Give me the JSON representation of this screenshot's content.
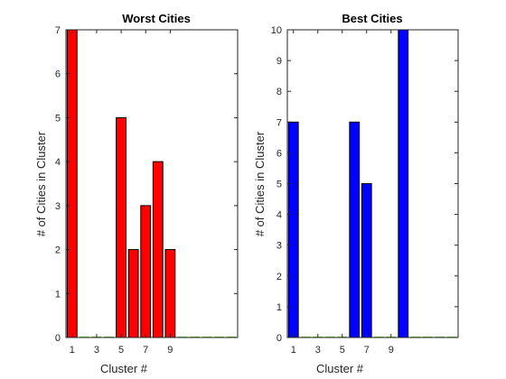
{
  "chart_data": [
    {
      "type": "bar",
      "title": "Worst Cities",
      "xlabel": "Cluster #",
      "ylabel": "# of Cities in Cluster",
      "x": [
        1,
        2,
        3,
        4,
        5,
        6,
        7,
        8,
        9,
        10,
        11,
        12,
        13,
        14
      ],
      "values": [
        7,
        0,
        0,
        0,
        5,
        2,
        3,
        4,
        2,
        0,
        0,
        0,
        0,
        0
      ],
      "xlim": [
        0.5,
        14.5
      ],
      "ylim": [
        0,
        7
      ],
      "xticks": [
        1,
        3,
        5,
        7,
        9
      ],
      "yticks": [
        0,
        1,
        2,
        3,
        4,
        5,
        6,
        7
      ],
      "bar_color": "#ff0000",
      "edge_color": "#000000",
      "zero_bar_color": "#66cc33",
      "grid": false,
      "legend": "none"
    },
    {
      "type": "bar",
      "title": "Best Cities",
      "xlabel": "Cluster #",
      "ylabel": "# of Cities in Cluster",
      "x": [
        1,
        2,
        3,
        4,
        5,
        6,
        7,
        8,
        9,
        10,
        11,
        12,
        13,
        14
      ],
      "values": [
        7,
        0,
        0,
        0,
        0,
        7,
        5,
        0,
        0,
        10,
        0,
        0,
        0,
        0
      ],
      "xlim": [
        0.5,
        14.5
      ],
      "ylim": [
        0,
        10
      ],
      "xticks": [
        1,
        3,
        5,
        7,
        9
      ],
      "yticks": [
        0,
        1,
        2,
        3,
        4,
        5,
        6,
        7,
        8,
        9,
        10
      ],
      "bar_color": "#0000ff",
      "edge_color": "#000000",
      "zero_bar_color": "#66cc33",
      "grid": false,
      "legend": "none"
    }
  ]
}
